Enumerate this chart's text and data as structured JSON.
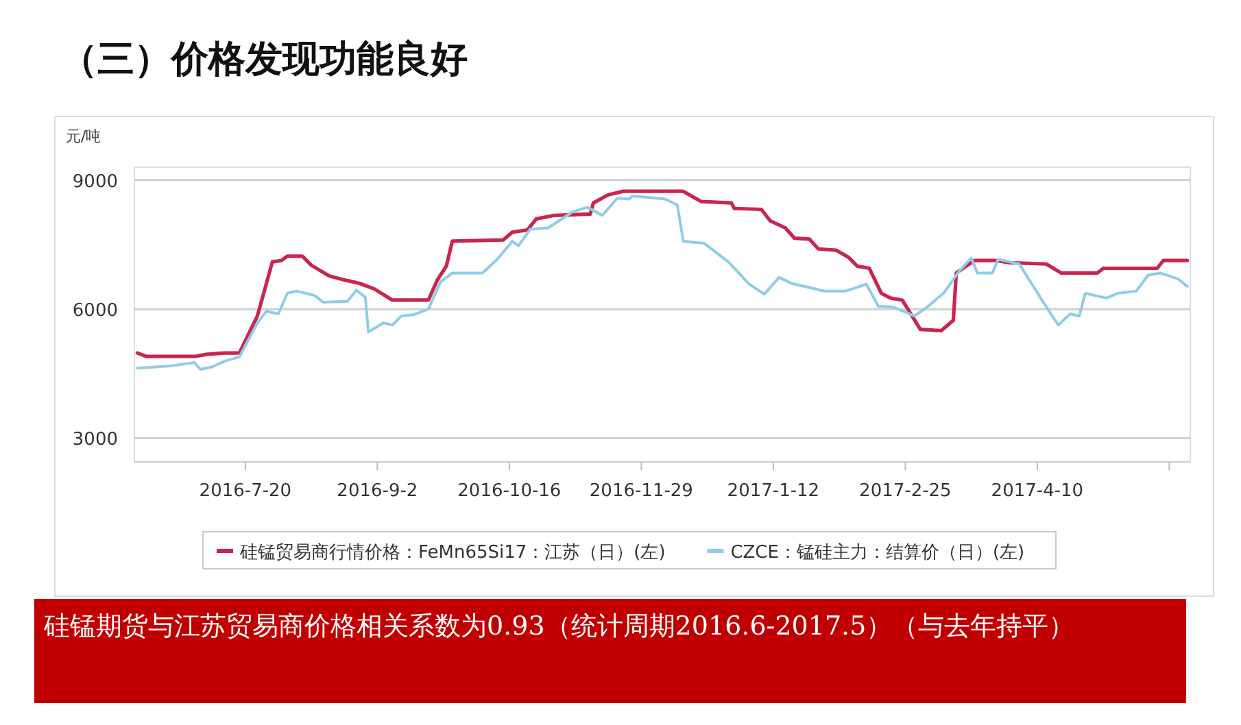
{
  "chart_data": {
    "type": "line",
    "title": "（三）价格发现功能良好",
    "ylabel": "元/吨",
    "annotations": [
      "硅锰期货与江苏贸易商价格相关系数为0.93（统计周期2016.6-2017.5）（与去年持平）"
    ],
    "xlim": [
      "2016-06-13",
      "2017-05-31"
    ],
    "xticks": [
      {
        "value": "2016-07-20",
        "label": "2016-7-20"
      },
      {
        "value": "2016-09-02",
        "label": "2016-9-2"
      },
      {
        "value": "2016-10-16",
        "label": "2016-10-16"
      },
      {
        "value": "2016-11-29",
        "label": "2016-11-29"
      },
      {
        "value": "2017-01-12",
        "label": "2017-1-12"
      },
      {
        "value": "2017-02-25",
        "label": "2017-2-25"
      },
      {
        "value": "2017-04-10",
        "label": "2017-4-10"
      },
      {
        "value": "2017-05-24",
        "label": null
      }
    ],
    "ylim": [
      2450,
      9300
    ],
    "yticks": [
      3000,
      6000,
      9000
    ],
    "grid": "y",
    "legend": "bottom",
    "marker": "none",
    "line_style": "solid",
    "series": [
      {
        "name": "硅锰贸易商行情价格：FeMn65Si17：江苏（日）(左)",
        "color": "#c9264f",
        "x": [
          "2016-06-14",
          "2016-06-17",
          "2016-07-03",
          "2016-07-07",
          "2016-07-13",
          "2016-07-18",
          "2016-07-24",
          "2016-07-29",
          "2016-08-01",
          "2016-08-03",
          "2016-08-08",
          "2016-08-11",
          "2016-08-17",
          "2016-08-22",
          "2016-08-27",
          "2016-09-01",
          "2016-09-07",
          "2016-09-19",
          "2016-09-22",
          "2016-09-25",
          "2016-09-27",
          "2016-10-14",
          "2016-10-17",
          "2016-10-22",
          "2016-10-25",
          "2016-10-31",
          "2016-11-12",
          "2016-11-13",
          "2016-11-18",
          "2016-11-23",
          "2016-12-13",
          "2016-12-19",
          "2016-12-29",
          "2016-12-30",
          "2017-01-08",
          "2017-01-11",
          "2017-01-16",
          "2017-01-19",
          "2017-01-24",
          "2017-01-27",
          "2017-02-02",
          "2017-02-06",
          "2017-02-09",
          "2017-02-13",
          "2017-02-17",
          "2017-02-20",
          "2017-02-24",
          "2017-03-02",
          "2017-03-09",
          "2017-03-13",
          "2017-03-14",
          "2017-03-20",
          "2017-03-27",
          "2017-04-01",
          "2017-04-13",
          "2017-04-18",
          "2017-04-30",
          "2017-05-02",
          "2017-05-20",
          "2017-05-22",
          "2017-05-30"
        ],
        "values": [
          4980,
          4900,
          4900,
          4950,
          4980,
          4980,
          5840,
          7100,
          7130,
          7230,
          7230,
          7020,
          6770,
          6680,
          6600,
          6470,
          6210,
          6210,
          6680,
          7000,
          7580,
          7610,
          7790,
          7840,
          8100,
          8180,
          8210,
          8470,
          8660,
          8740,
          8740,
          8500,
          8470,
          8340,
          8320,
          8050,
          7890,
          7650,
          7630,
          7400,
          7370,
          7210,
          7000,
          6950,
          6370,
          6260,
          6210,
          5530,
          5500,
          5740,
          6840,
          7130,
          7130,
          7080,
          7050,
          6840,
          6840,
          6950,
          6950,
          7130,
          7130
        ]
      },
      {
        "name": "CZCE：锰硅主力：结算价（日）(左)",
        "color": "#8fcde6",
        "x": [
          "2016-06-14",
          "2016-06-25",
          "2016-07-03",
          "2016-07-05",
          "2016-07-09",
          "2016-07-13",
          "2016-07-18",
          "2016-07-24",
          "2016-07-27",
          "2016-07-31",
          "2016-08-03",
          "2016-08-06",
          "2016-08-12",
          "2016-08-15",
          "2016-08-23",
          "2016-08-26",
          "2016-08-29",
          "2016-08-30",
          "2016-09-04",
          "2016-09-07",
          "2016-09-10",
          "2016-09-14",
          "2016-09-19",
          "2016-09-23",
          "2016-09-27",
          "2016-10-07",
          "2016-10-12",
          "2016-10-17",
          "2016-10-19",
          "2016-10-23",
          "2016-10-29",
          "2016-11-06",
          "2016-11-11",
          "2016-11-16",
          "2016-11-21",
          "2016-11-25",
          "2016-11-26",
          "2016-12-07",
          "2016-12-11",
          "2016-12-13",
          "2016-12-20",
          "2016-12-28",
          "2017-01-04",
          "2017-01-09",
          "2017-01-14",
          "2017-01-18",
          "2017-01-29",
          "2017-02-05",
          "2017-02-12",
          "2017-02-16",
          "2017-02-21",
          "2017-02-28",
          "2017-03-04",
          "2017-03-10",
          "2017-03-15",
          "2017-03-19",
          "2017-03-21",
          "2017-03-26",
          "2017-03-28",
          "2017-04-04",
          "2017-04-12",
          "2017-04-17",
          "2017-04-21",
          "2017-04-24",
          "2017-04-26",
          "2017-05-03",
          "2017-05-07",
          "2017-05-13",
          "2017-05-17",
          "2017-05-21",
          "2017-05-27",
          "2017-05-30"
        ],
        "values": [
          4630,
          4680,
          4760,
          4600,
          4660,
          4790,
          4890,
          5680,
          5950,
          5890,
          6370,
          6420,
          6320,
          6160,
          6180,
          6440,
          6280,
          5470,
          5680,
          5630,
          5840,
          5870,
          6000,
          6630,
          6840,
          6840,
          7160,
          7580,
          7470,
          7860,
          7890,
          8260,
          8370,
          8180,
          8580,
          8560,
          8630,
          8560,
          8420,
          7580,
          7530,
          7100,
          6580,
          6350,
          6740,
          6600,
          6420,
          6420,
          6580,
          6070,
          6050,
          5840,
          6030,
          6390,
          6890,
          7190,
          6840,
          6840,
          7160,
          7050,
          6160,
          5630,
          5890,
          5840,
          6370,
          6260,
          6370,
          6420,
          6790,
          6840,
          6700,
          6530
        ]
      }
    ]
  }
}
